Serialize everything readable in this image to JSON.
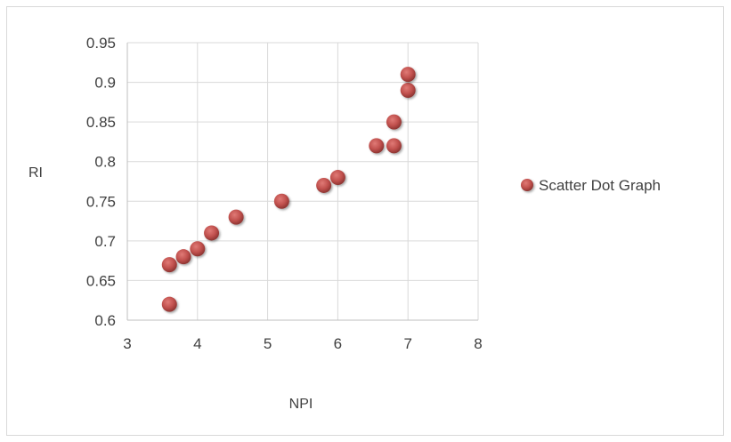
{
  "chart_data": {
    "type": "scatter",
    "xlabel": "NPI",
    "ylabel": "RI",
    "xlim": [
      3,
      8
    ],
    "ylim": [
      0.6,
      0.95
    ],
    "x_ticks": [
      "3",
      "4",
      "5",
      "6",
      "7",
      "8"
    ],
    "y_ticks": [
      "0.6",
      "0.65",
      "0.7",
      "0.75",
      "0.8",
      "0.85",
      "0.9",
      "0.95"
    ],
    "grid": true,
    "legend_position": "right",
    "series": [
      {
        "name": "Scatter Dot Graph",
        "color": "#c0504d",
        "points": [
          {
            "x": 3.6,
            "y": 0.62
          },
          {
            "x": 3.6,
            "y": 0.67
          },
          {
            "x": 3.8,
            "y": 0.68
          },
          {
            "x": 4.0,
            "y": 0.69
          },
          {
            "x": 4.2,
            "y": 0.71
          },
          {
            "x": 4.55,
            "y": 0.73
          },
          {
            "x": 5.2,
            "y": 0.75
          },
          {
            "x": 5.8,
            "y": 0.77
          },
          {
            "x": 6.0,
            "y": 0.78
          },
          {
            "x": 6.55,
            "y": 0.82
          },
          {
            "x": 6.8,
            "y": 0.82
          },
          {
            "x": 6.8,
            "y": 0.85
          },
          {
            "x": 7.0,
            "y": 0.89
          },
          {
            "x": 7.0,
            "y": 0.91
          }
        ]
      }
    ]
  }
}
